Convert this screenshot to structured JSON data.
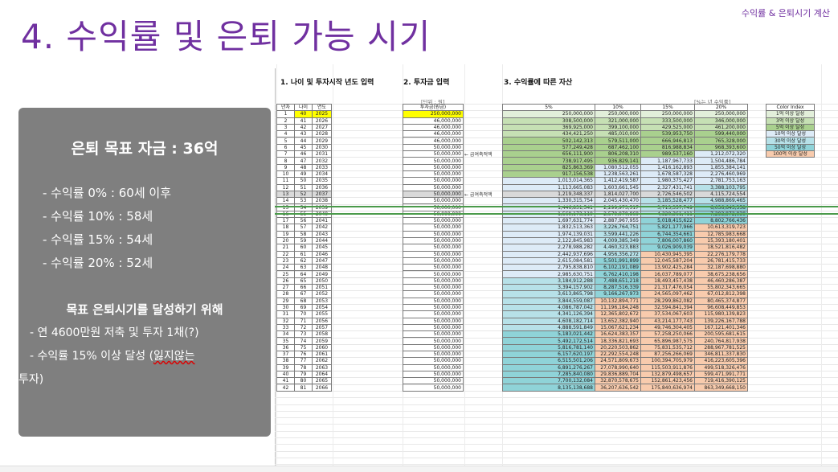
{
  "slide": {
    "title": "4. 수익률 및 은퇴 가능 시기",
    "subtitle": "수익률 & 은퇴시기 계산"
  },
  "goal_box": {
    "title": "은퇴 목표 자금 : 36억",
    "rates": [
      "- 수익률   0% : 60세 이후",
      "- 수익률 10% : 58세",
      "- 수익률 15% : 54세",
      "- 수익률 20% : 52세"
    ],
    "plan_title": "목표 은퇴시기를 달성하기 위해",
    "plan_line1": "- 연 4600만원 저축 및 투자 1채(?)",
    "plan_line2a": "- 수익률 15% 이상 달성 (",
    "plan_line2b": "잃지않는",
    "plan_line2c": "투자)"
  },
  "sheet": {
    "sec1": "1. 나이 및 투자시작 년도 입력",
    "sec2": "2. 투자금 입력",
    "sec3": "3. 수익률에 따른 자산",
    "unit_note": "[단위 : 원]",
    "rate_note": "[%는 년 수익률]",
    "arrow_note1": "← 급여축적액",
    "arrow_note2": "← 급여축적액",
    "headers": {
      "year_idx": "년차",
      "age": "나이",
      "year": "연도",
      "invest": "투자금(원금)",
      "r5": "5%",
      "r10": "10%",
      "r15": "15%",
      "r20": "20%"
    },
    "color_index": {
      "title": "Color Index",
      "items": [
        {
          "label": "1억 이상 달성",
          "color": "#e2efda"
        },
        {
          "label": "3억 이상 달성",
          "color": "#c6e0b4"
        },
        {
          "label": "5억 이상 달성",
          "color": "#a9d08e"
        },
        {
          "label": "10억 이상 달성",
          "color": "#ddebf7"
        },
        {
          "label": "30억 이상 달성",
          "color": "#b7e1e8"
        },
        {
          "label": "50억 이상 달성",
          "color": "#8fd3d8"
        },
        {
          "label": "100억 이상 달성",
          "color": "#f8cbad"
        }
      ]
    },
    "rows": [
      [
        "1",
        "40",
        "2025",
        "250,000,000",
        "250,000,000",
        "250,000,000",
        "250,000,000",
        "250,000,000"
      ],
      [
        "2",
        "41",
        "2026",
        "46,000,000",
        "308,500,000",
        "321,000,000",
        "333,500,000",
        "346,000,000"
      ],
      [
        "3",
        "42",
        "2027",
        "46,000,000",
        "369,925,000",
        "399,100,000",
        "429,525,000",
        "461,200,000"
      ],
      [
        "4",
        "43",
        "2028",
        "46,000,000",
        "434,421,250",
        "485,010,000",
        "539,953,750",
        "599,440,000"
      ],
      [
        "5",
        "44",
        "2029",
        "46,000,000",
        "502,142,313",
        "579,511,000",
        "666,946,813",
        "765,328,000"
      ],
      [
        "6",
        "45",
        "2030",
        "50,000,000",
        "577,249,428",
        "687,462,100",
        "816,988,834",
        "968,393,600"
      ],
      [
        "7",
        "46",
        "2031",
        "50,000,000",
        "656,111,900",
        "806,208,310",
        "989,537,160",
        "1,212,072,320"
      ],
      [
        "8",
        "47",
        "2032",
        "50,000,000",
        "738,917,495",
        "936,829,141",
        "1,187,967,733",
        "1,504,486,784"
      ],
      [
        "9",
        "48",
        "2033",
        "50,000,000",
        "825,863,369",
        "1,080,512,055",
        "1,416,162,893",
        "1,855,384,141"
      ],
      [
        "10",
        "49",
        "2034",
        "50,000,000",
        "917,156,538",
        "1,238,563,261",
        "1,678,587,328",
        "2,276,460,969"
      ],
      [
        "11",
        "50",
        "2035",
        "50,000,000",
        "1,013,014,365",
        "1,412,419,587",
        "1,980,375,427",
        "2,781,753,163"
      ],
      [
        "12",
        "51",
        "2036",
        "50,000,000",
        "1,113,665,083",
        "1,603,661,545",
        "2,327,431,741",
        "3,388,103,795"
      ],
      [
        "13",
        "52",
        "2037",
        "50,000,000",
        "1,219,348,337",
        "1,814,027,700",
        "2,726,546,502",
        "4,115,724,554"
      ],
      [
        "14",
        "53",
        "2038",
        "50,000,000",
        "1,330,315,754",
        "2,045,430,470",
        "3,185,528,477",
        "4,988,869,465"
      ],
      [
        "15",
        "54",
        "2039",
        "50,000,000",
        "1,446,831,541",
        "2,299,973,517",
        "3,713,357,749",
        "6,036,643,358"
      ],
      [
        "16",
        "55",
        "2040",
        "50,000,000",
        "1,569,173,119",
        "2,579,970,869",
        "4,320,361,411",
        "7,293,972,030"
      ],
      [
        "17",
        "56",
        "2041",
        "50,000,000",
        "1,697,631,774",
        "2,887,967,955",
        "5,018,415,622",
        "8,802,766,436"
      ],
      [
        "18",
        "57",
        "2042",
        "50,000,000",
        "1,832,513,363",
        "3,226,764,751",
        "5,821,177,966",
        "10,613,319,723"
      ],
      [
        "19",
        "58",
        "2043",
        "50,000,000",
        "1,974,139,031",
        "3,599,441,226",
        "6,744,354,661",
        "12,785,983,668"
      ],
      [
        "20",
        "59",
        "2044",
        "50,000,000",
        "2,122,845,983",
        "4,009,385,349",
        "7,806,007,860",
        "15,393,180,401"
      ],
      [
        "21",
        "60",
        "2045",
        "50,000,000",
        "2,278,988,282",
        "4,460,323,883",
        "9,026,909,039",
        "18,521,816,482"
      ],
      [
        "22",
        "61",
        "2046",
        "50,000,000",
        "2,442,937,696",
        "4,956,356,272",
        "10,430,945,395",
        "22,276,179,778"
      ],
      [
        "23",
        "62",
        "2047",
        "50,000,000",
        "2,615,084,581",
        "5,501,991,899",
        "12,045,587,204",
        "26,781,415,733"
      ],
      [
        "24",
        "63",
        "2048",
        "50,000,000",
        "2,795,838,810",
        "6,102,191,089",
        "13,902,425,284",
        "32,187,698,880"
      ],
      [
        "25",
        "64",
        "2049",
        "50,000,000",
        "2,985,630,751",
        "6,762,410,198",
        "16,037,789,077",
        "38,675,238,656"
      ],
      [
        "26",
        "65",
        "2050",
        "50,000,000",
        "3,184,912,288",
        "7,488,651,218",
        "18,493,457,438",
        "46,460,286,387"
      ],
      [
        "27",
        "66",
        "2051",
        "50,000,000",
        "3,394,157,902",
        "8,287,516,339",
        "21,317,476,054",
        "55,802,343,665"
      ],
      [
        "28",
        "67",
        "2052",
        "50,000,000",
        "3,613,865,798",
        "9,166,267,973",
        "24,565,097,462",
        "67,012,812,398"
      ],
      [
        "29",
        "68",
        "2053",
        "50,000,000",
        "3,844,559,087",
        "10,132,894,771",
        "28,299,862,082",
        "80,465,374,877"
      ],
      [
        "30",
        "69",
        "2054",
        "50,000,000",
        "4,086,787,042",
        "11,196,184,248",
        "32,594,841,394",
        "96,608,449,853"
      ],
      [
        "31",
        "70",
        "2055",
        "50,000,000",
        "4,341,126,394",
        "12,365,802,672",
        "37,534,067,603",
        "115,980,139,823"
      ],
      [
        "32",
        "71",
        "2056",
        "50,000,000",
        "4,608,182,714",
        "13,652,382,940",
        "43,214,177,743",
        "139,226,167,788"
      ],
      [
        "33",
        "72",
        "2057",
        "50,000,000",
        "4,888,591,849",
        "15,067,621,234",
        "49,746,304,405",
        "167,121,401,346"
      ],
      [
        "34",
        "73",
        "2058",
        "50,000,000",
        "5,183,021,442",
        "16,624,383,357",
        "57,258,250,066",
        "200,595,681,615"
      ],
      [
        "35",
        "74",
        "2059",
        "50,000,000",
        "5,492,172,514",
        "18,336,821,693",
        "65,896,987,575",
        "240,764,817,938"
      ],
      [
        "36",
        "75",
        "2060",
        "50,000,000",
        "5,816,781,140",
        "20,220,503,862",
        "75,831,535,712",
        "288,967,781,525"
      ],
      [
        "37",
        "76",
        "2061",
        "50,000,000",
        "6,157,620,197",
        "22,292,554,248",
        "87,256,266,069",
        "346,811,337,830"
      ],
      [
        "38",
        "77",
        "2062",
        "50,000,000",
        "6,515,501,206",
        "24,571,809,673",
        "100,394,705,979",
        "416,223,605,396"
      ],
      [
        "39",
        "78",
        "2063",
        "50,000,000",
        "6,891,276,267",
        "27,078,990,640",
        "115,503,911,876",
        "499,518,326,476"
      ],
      [
        "40",
        "79",
        "2064",
        "50,000,000",
        "7,285,840,080",
        "29,836,889,704",
        "132,879,498,657",
        "599,471,991,771"
      ],
      [
        "41",
        "80",
        "2065",
        "50,000,000",
        "7,700,132,084",
        "32,870,578,675",
        "152,861,423,456",
        "719,416,390,125"
      ],
      [
        "42",
        "81",
        "2066",
        "50,000,000",
        "8,135,138,688",
        "36,207,636,542",
        "175,840,636,974",
        "863,349,668,150"
      ]
    ]
  }
}
